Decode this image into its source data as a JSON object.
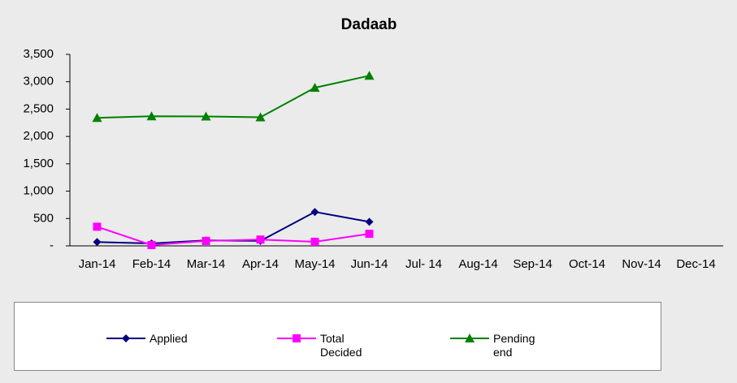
{
  "chart_data": {
    "type": "line",
    "title": "Dadaab",
    "categories": [
      "Jan-14",
      "Feb-14",
      "Mar-14",
      "Apr-14",
      "May-14",
      "Jun-14",
      "Jul- 14",
      "Aug-14",
      "Sep-14",
      "Oct-14",
      "Nov-14",
      "Dec-14"
    ],
    "series": [
      {
        "name": "Applied",
        "color": "#000080",
        "marker": "diamond",
        "values": [
          70,
          45,
          100,
          90,
          620,
          440,
          null,
          null,
          null,
          null,
          null,
          null
        ]
      },
      {
        "name": "Total Decided",
        "color": "#ff00ff",
        "marker": "square",
        "values": [
          350,
          15,
          90,
          115,
          75,
          220,
          null,
          null,
          null,
          null,
          null,
          null
        ]
      },
      {
        "name": "Pending end",
        "color": "#008000",
        "marker": "triangle",
        "values": [
          2340,
          2370,
          2365,
          2350,
          2890,
          3110,
          null,
          null,
          null,
          null,
          null,
          null
        ]
      }
    ],
    "ylim": [
      0,
      3500
    ],
    "yticks": [
      {
        "value": 0,
        "label": "-"
      },
      500,
      {
        "value": 1000,
        "label": "1,000"
      },
      {
        "value": 1500,
        "label": "1,500"
      },
      {
        "value": 2000,
        "label": "2,000"
      },
      {
        "value": 2500,
        "label": "2,500"
      },
      {
        "value": 3000,
        "label": "3,000"
      },
      {
        "value": 3500,
        "label": "3,500"
      }
    ],
    "grid": false,
    "legend": "bottom"
  }
}
